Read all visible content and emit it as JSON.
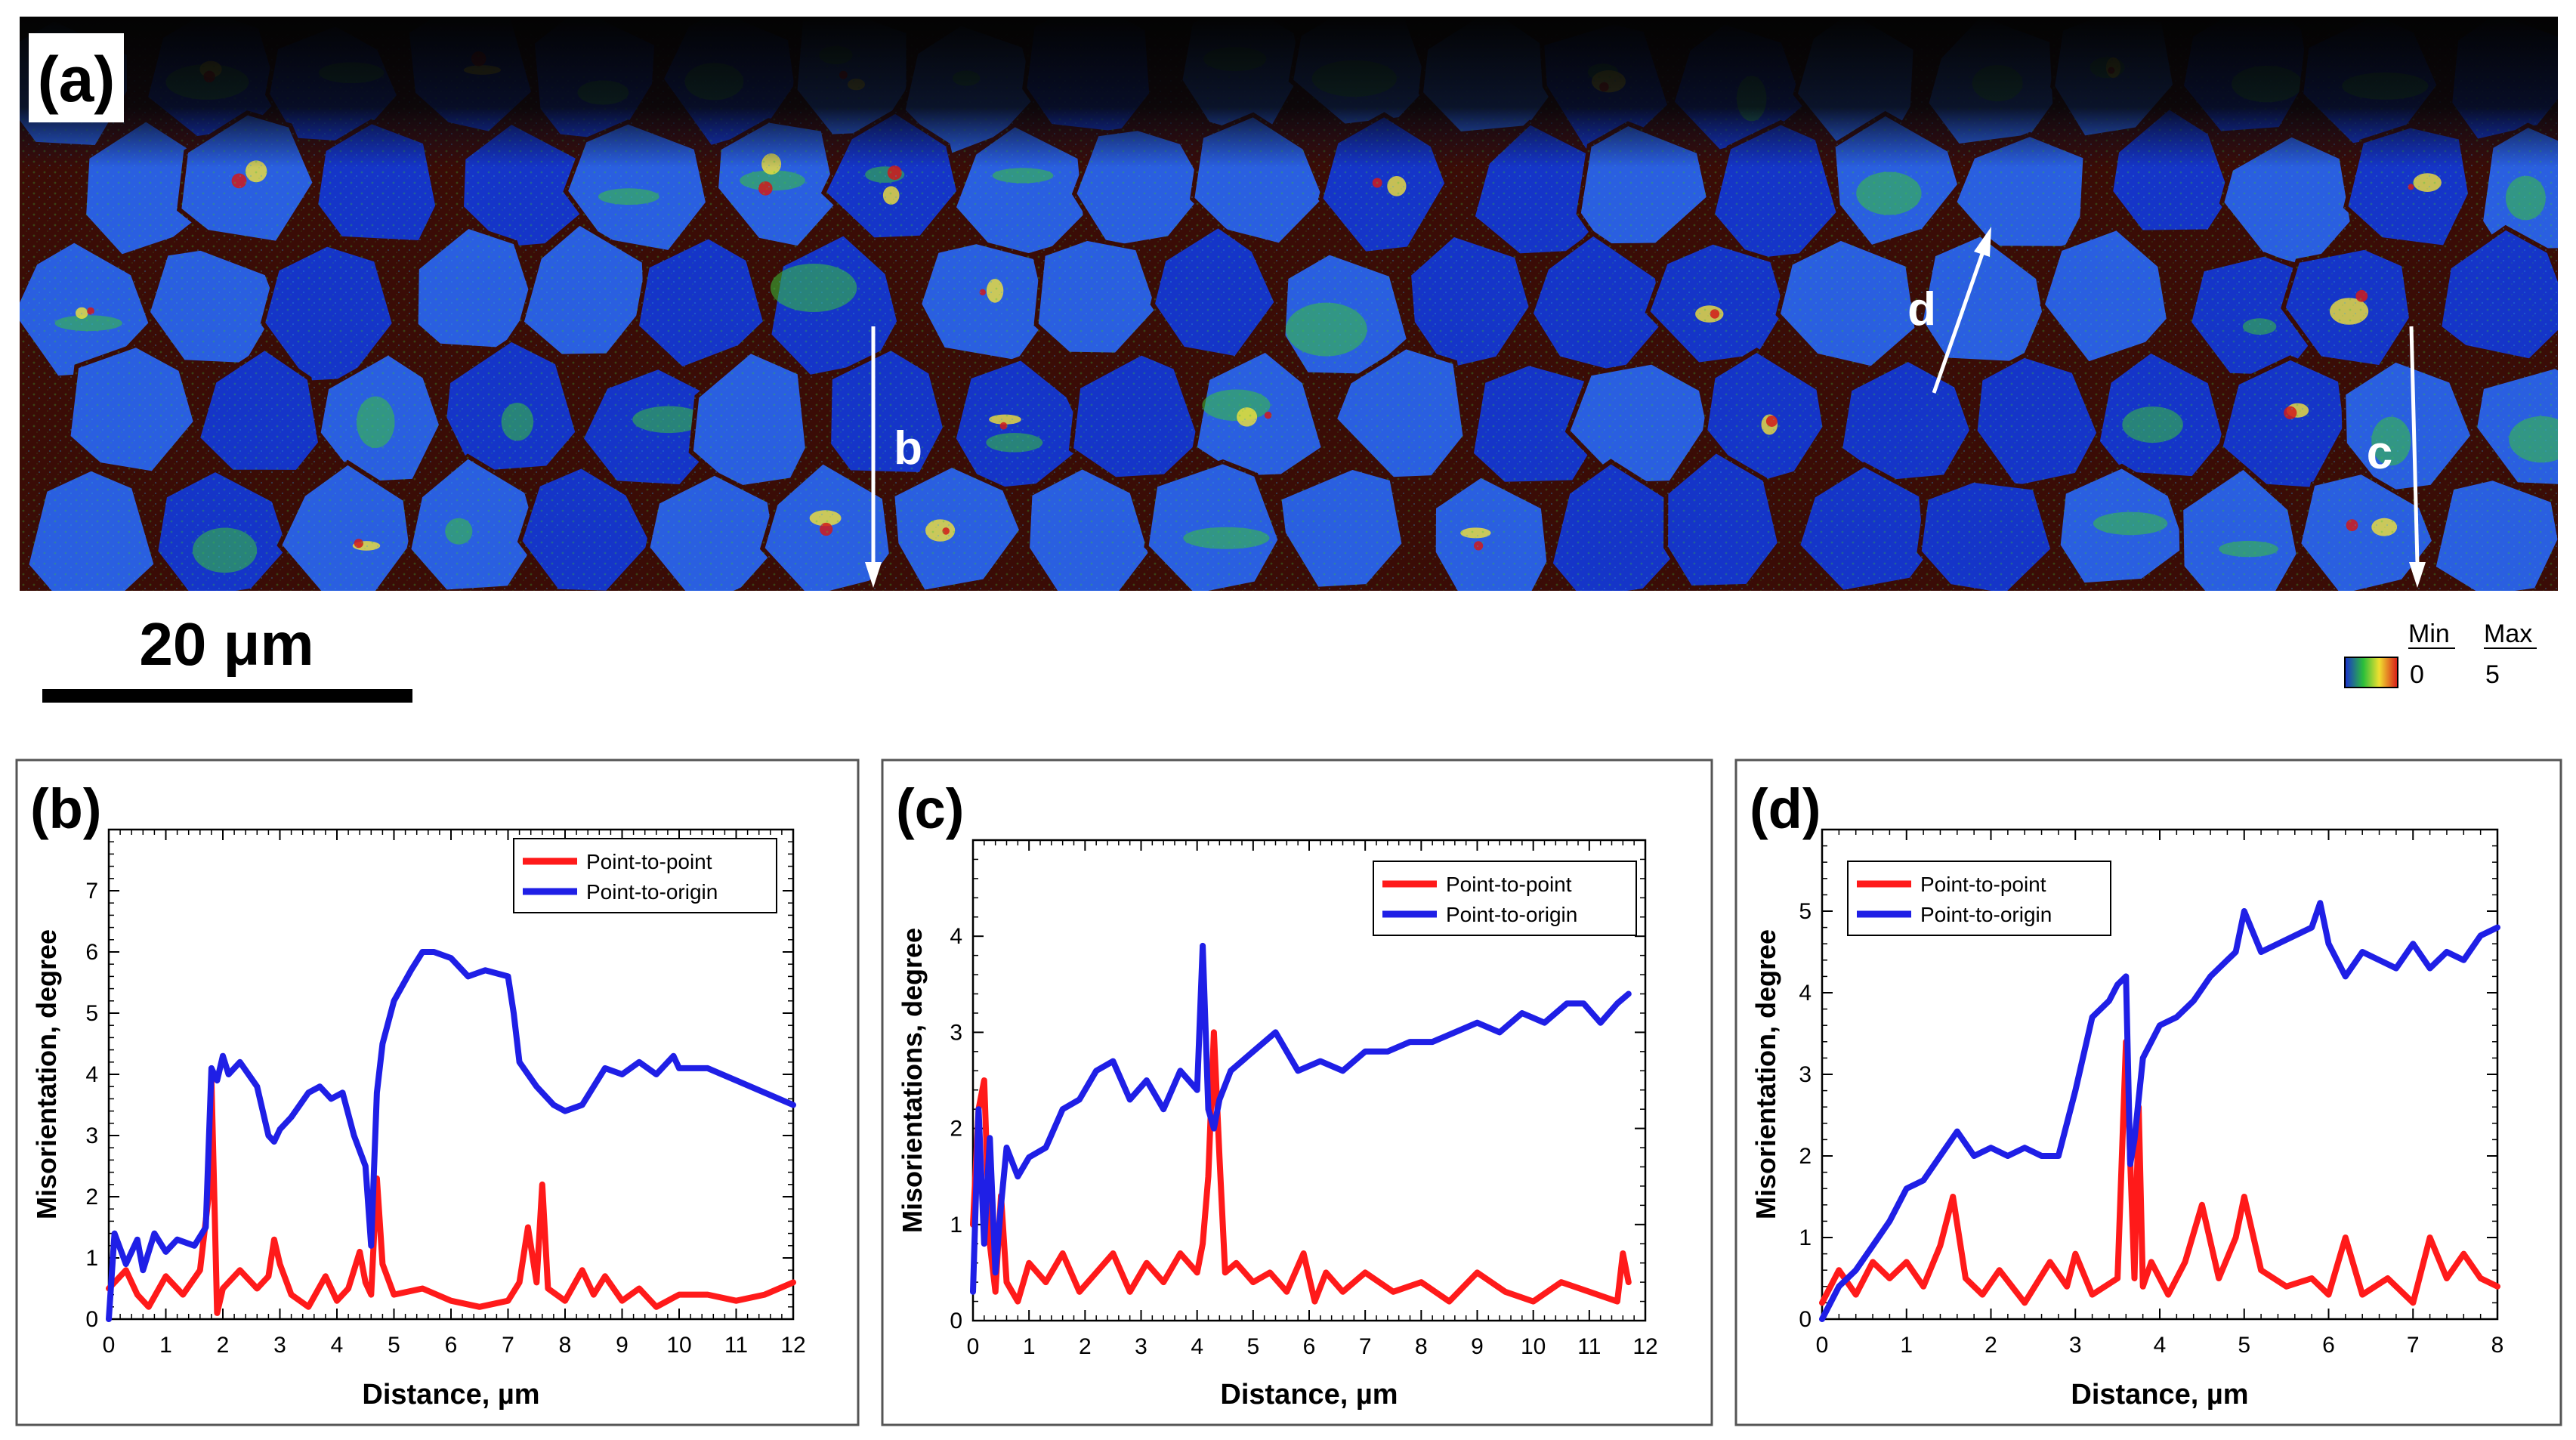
{
  "figure_panel_a": {
    "label": "(a)",
    "line_labels": [
      "b",
      "c",
      "d"
    ],
    "scale_bar_label": "20 μm",
    "colorbar": {
      "min_header": "Min",
      "max_header": "Max",
      "min_value": "0",
      "max_value": "5"
    },
    "colors": {
      "deep_blue": "#1535c8",
      "blue": "#2a5fe0",
      "green": "#39c23a",
      "yellow": "#f2e23a",
      "red": "#d11a1a",
      "boundary": "#3a0c06",
      "top_band": "#050505"
    }
  },
  "series_colors": {
    "Point-to-point": "#ff1a1a",
    "Point-to-origin": "#1f1fe6"
  },
  "chart_data": [
    {
      "type": "line",
      "panel_label": "(b)",
      "xlabel": "Distance, µm",
      "ylabel": "Misorientation, degree",
      "xlim": [
        0,
        12
      ],
      "ylim": [
        0,
        8
      ],
      "x_ticks": [
        "0",
        "1",
        "2",
        "3",
        "4",
        "5",
        "6",
        "7",
        "8",
        "9",
        "10",
        "11",
        "12"
      ],
      "y_ticks": [
        "0",
        "1",
        "2",
        "3",
        "4",
        "5",
        "6",
        "7"
      ],
      "legend": [
        "Point-to-point",
        "Point-to-origin"
      ],
      "legend_position": "top-right",
      "series": [
        {
          "name": "Point-to-point",
          "x": [
            0,
            0.3,
            0.5,
            0.7,
            1.0,
            1.3,
            1.6,
            1.75,
            1.8,
            1.85,
            1.9,
            2.0,
            2.3,
            2.6,
            2.8,
            2.9,
            3.0,
            3.2,
            3.5,
            3.8,
            4.0,
            4.2,
            4.4,
            4.5,
            4.6,
            4.7,
            4.8,
            5.0,
            5.5,
            6.0,
            6.5,
            7.0,
            7.2,
            7.35,
            7.5,
            7.6,
            7.7,
            8.0,
            8.3,
            8.5,
            8.7,
            9.0,
            9.3,
            9.6,
            10.0,
            10.5,
            11.0,
            11.5,
            12.0
          ],
          "y": [
            0.5,
            0.8,
            0.4,
            0.2,
            0.7,
            0.4,
            0.8,
            2.0,
            3.9,
            2.0,
            0.1,
            0.5,
            0.8,
            0.5,
            0.7,
            1.3,
            0.9,
            0.4,
            0.2,
            0.7,
            0.3,
            0.5,
            1.1,
            0.6,
            0.4,
            2.3,
            0.9,
            0.4,
            0.5,
            0.3,
            0.2,
            0.3,
            0.6,
            1.5,
            0.6,
            2.2,
            0.5,
            0.3,
            0.8,
            0.4,
            0.7,
            0.3,
            0.5,
            0.2,
            0.4,
            0.4,
            0.3,
            0.4,
            0.6
          ]
        },
        {
          "name": "Point-to-origin",
          "x": [
            0,
            0.1,
            0.3,
            0.5,
            0.6,
            0.8,
            1.0,
            1.2,
            1.5,
            1.7,
            1.8,
            1.9,
            2.0,
            2.1,
            2.3,
            2.6,
            2.8,
            2.9,
            3.0,
            3.2,
            3.5,
            3.7,
            3.9,
            4.1,
            4.3,
            4.5,
            4.6,
            4.7,
            4.8,
            5.0,
            5.3,
            5.5,
            5.7,
            6.0,
            6.3,
            6.6,
            7.0,
            7.1,
            7.2,
            7.5,
            7.8,
            8.0,
            8.3,
            8.5,
            8.7,
            9.0,
            9.3,
            9.6,
            9.9,
            10.0,
            10.5,
            11.0,
            11.5,
            12.0
          ],
          "y": [
            0,
            1.4,
            0.9,
            1.3,
            0.8,
            1.4,
            1.1,
            1.3,
            1.2,
            1.5,
            4.1,
            3.9,
            4.3,
            4.0,
            4.2,
            3.8,
            3.0,
            2.9,
            3.1,
            3.3,
            3.7,
            3.8,
            3.6,
            3.7,
            3.0,
            2.5,
            1.2,
            3.7,
            4.5,
            5.2,
            5.7,
            6.0,
            6.0,
            5.9,
            5.6,
            5.7,
            5.6,
            5.0,
            4.2,
            3.8,
            3.5,
            3.4,
            3.5,
            3.8,
            4.1,
            4.0,
            4.2,
            4.0,
            4.3,
            4.1,
            4.1,
            3.9,
            3.7,
            3.5
          ]
        }
      ]
    },
    {
      "type": "line",
      "panel_label": "(c)",
      "xlabel": "Distance, µm",
      "ylabel": "Misorientations, degree",
      "xlim": [
        0,
        12
      ],
      "ylim": [
        0,
        5
      ],
      "x_ticks": [
        "0",
        "1",
        "2",
        "3",
        "4",
        "5",
        "6",
        "7",
        "8",
        "9",
        "10",
        "11",
        "12"
      ],
      "y_ticks": [
        "0",
        "1",
        "2",
        "3",
        "4"
      ],
      "legend": [
        "Point-to-point",
        "Point-to-origin"
      ],
      "legend_position": "top-right",
      "series": [
        {
          "name": "Point-to-point",
          "x": [
            0,
            0.1,
            0.2,
            0.3,
            0.4,
            0.5,
            0.6,
            0.8,
            1.0,
            1.3,
            1.6,
            1.9,
            2.2,
            2.5,
            2.8,
            3.1,
            3.4,
            3.7,
            4.0,
            4.1,
            4.2,
            4.3,
            4.4,
            4.5,
            4.7,
            5.0,
            5.3,
            5.6,
            5.9,
            6.1,
            6.3,
            6.6,
            7.0,
            7.5,
            8.0,
            8.5,
            9.0,
            9.5,
            10.0,
            10.5,
            11.0,
            11.5,
            11.6,
            11.7
          ],
          "y": [
            1.0,
            2.2,
            2.5,
            0.8,
            0.3,
            1.3,
            0.4,
            0.2,
            0.6,
            0.4,
            0.7,
            0.3,
            0.5,
            0.7,
            0.3,
            0.6,
            0.4,
            0.7,
            0.5,
            0.8,
            1.5,
            3.0,
            1.7,
            0.5,
            0.6,
            0.4,
            0.5,
            0.3,
            0.7,
            0.2,
            0.5,
            0.3,
            0.5,
            0.3,
            0.4,
            0.2,
            0.5,
            0.3,
            0.2,
            0.4,
            0.3,
            0.2,
            0.7,
            0.4
          ]
        },
        {
          "name": "Point-to-origin",
          "x": [
            0,
            0.1,
            0.2,
            0.3,
            0.4,
            0.5,
            0.6,
            0.8,
            1.0,
            1.3,
            1.6,
            1.9,
            2.2,
            2.5,
            2.8,
            3.1,
            3.4,
            3.7,
            4.0,
            4.1,
            4.2,
            4.3,
            4.4,
            4.6,
            5.0,
            5.4,
            5.8,
            6.2,
            6.6,
            7.0,
            7.4,
            7.8,
            8.2,
            8.6,
            9.0,
            9.4,
            9.8,
            10.2,
            10.6,
            10.9,
            11.2,
            11.5,
            11.7
          ],
          "y": [
            0.3,
            2.2,
            0.8,
            1.9,
            0.5,
            1.2,
            1.8,
            1.5,
            1.7,
            1.8,
            2.2,
            2.3,
            2.6,
            2.7,
            2.3,
            2.5,
            2.2,
            2.6,
            2.4,
            3.9,
            2.2,
            2.0,
            2.3,
            2.6,
            2.8,
            3.0,
            2.6,
            2.7,
            2.6,
            2.8,
            2.8,
            2.9,
            2.9,
            3.0,
            3.1,
            3.0,
            3.2,
            3.1,
            3.3,
            3.3,
            3.1,
            3.3,
            3.4
          ]
        }
      ]
    },
    {
      "type": "line",
      "panel_label": "(d)",
      "xlabel": "Distance, µm",
      "ylabel": "Misorientation, degree",
      "xlim": [
        0,
        8
      ],
      "ylim": [
        0,
        6
      ],
      "x_ticks": [
        "0",
        "1",
        "2",
        "3",
        "4",
        "5",
        "6",
        "7",
        "8"
      ],
      "y_ticks": [
        "0",
        "1",
        "2",
        "3",
        "4",
        "5"
      ],
      "legend": [
        "Point-to-point",
        "Point-to-origin"
      ],
      "legend_position": "top-left",
      "series": [
        {
          "name": "Point-to-point",
          "x": [
            0,
            0.2,
            0.4,
            0.6,
            0.8,
            1.0,
            1.2,
            1.4,
            1.55,
            1.7,
            1.9,
            2.1,
            2.4,
            2.7,
            2.9,
            3.0,
            3.2,
            3.5,
            3.6,
            3.7,
            3.75,
            3.8,
            3.9,
            4.1,
            4.3,
            4.5,
            4.7,
            4.9,
            5.0,
            5.2,
            5.5,
            5.8,
            6.0,
            6.2,
            6.4,
            6.7,
            7.0,
            7.2,
            7.4,
            7.6,
            7.8,
            8.0
          ],
          "y": [
            0.2,
            0.6,
            0.3,
            0.7,
            0.5,
            0.7,
            0.4,
            0.9,
            1.5,
            0.5,
            0.3,
            0.6,
            0.2,
            0.7,
            0.4,
            0.8,
            0.3,
            0.5,
            3.4,
            0.5,
            2.6,
            0.4,
            0.7,
            0.3,
            0.7,
            1.4,
            0.5,
            1.0,
            1.5,
            0.6,
            0.4,
            0.5,
            0.3,
            1.0,
            0.3,
            0.5,
            0.2,
            1.0,
            0.5,
            0.8,
            0.5,
            0.4
          ]
        },
        {
          "name": "Point-to-origin",
          "x": [
            0,
            0.2,
            0.4,
            0.6,
            0.8,
            1.0,
            1.2,
            1.4,
            1.6,
            1.8,
            2.0,
            2.2,
            2.4,
            2.6,
            2.8,
            3.0,
            3.2,
            3.4,
            3.5,
            3.6,
            3.65,
            3.7,
            3.8,
            4.0,
            4.2,
            4.4,
            4.6,
            4.8,
            4.9,
            5.0,
            5.2,
            5.4,
            5.6,
            5.8,
            5.9,
            6.0,
            6.2,
            6.4,
            6.6,
            6.8,
            7.0,
            7.2,
            7.4,
            7.6,
            7.8,
            8.0
          ],
          "y": [
            0,
            0.4,
            0.6,
            0.9,
            1.2,
            1.6,
            1.7,
            2.0,
            2.3,
            2.0,
            2.1,
            2.0,
            2.1,
            2.0,
            2.0,
            2.8,
            3.7,
            3.9,
            4.1,
            4.2,
            1.9,
            2.2,
            3.2,
            3.6,
            3.7,
            3.9,
            4.2,
            4.4,
            4.5,
            5.0,
            4.5,
            4.6,
            4.7,
            4.8,
            5.1,
            4.6,
            4.2,
            4.5,
            4.4,
            4.3,
            4.6,
            4.3,
            4.5,
            4.4,
            4.7,
            4.8
          ]
        }
      ]
    }
  ]
}
